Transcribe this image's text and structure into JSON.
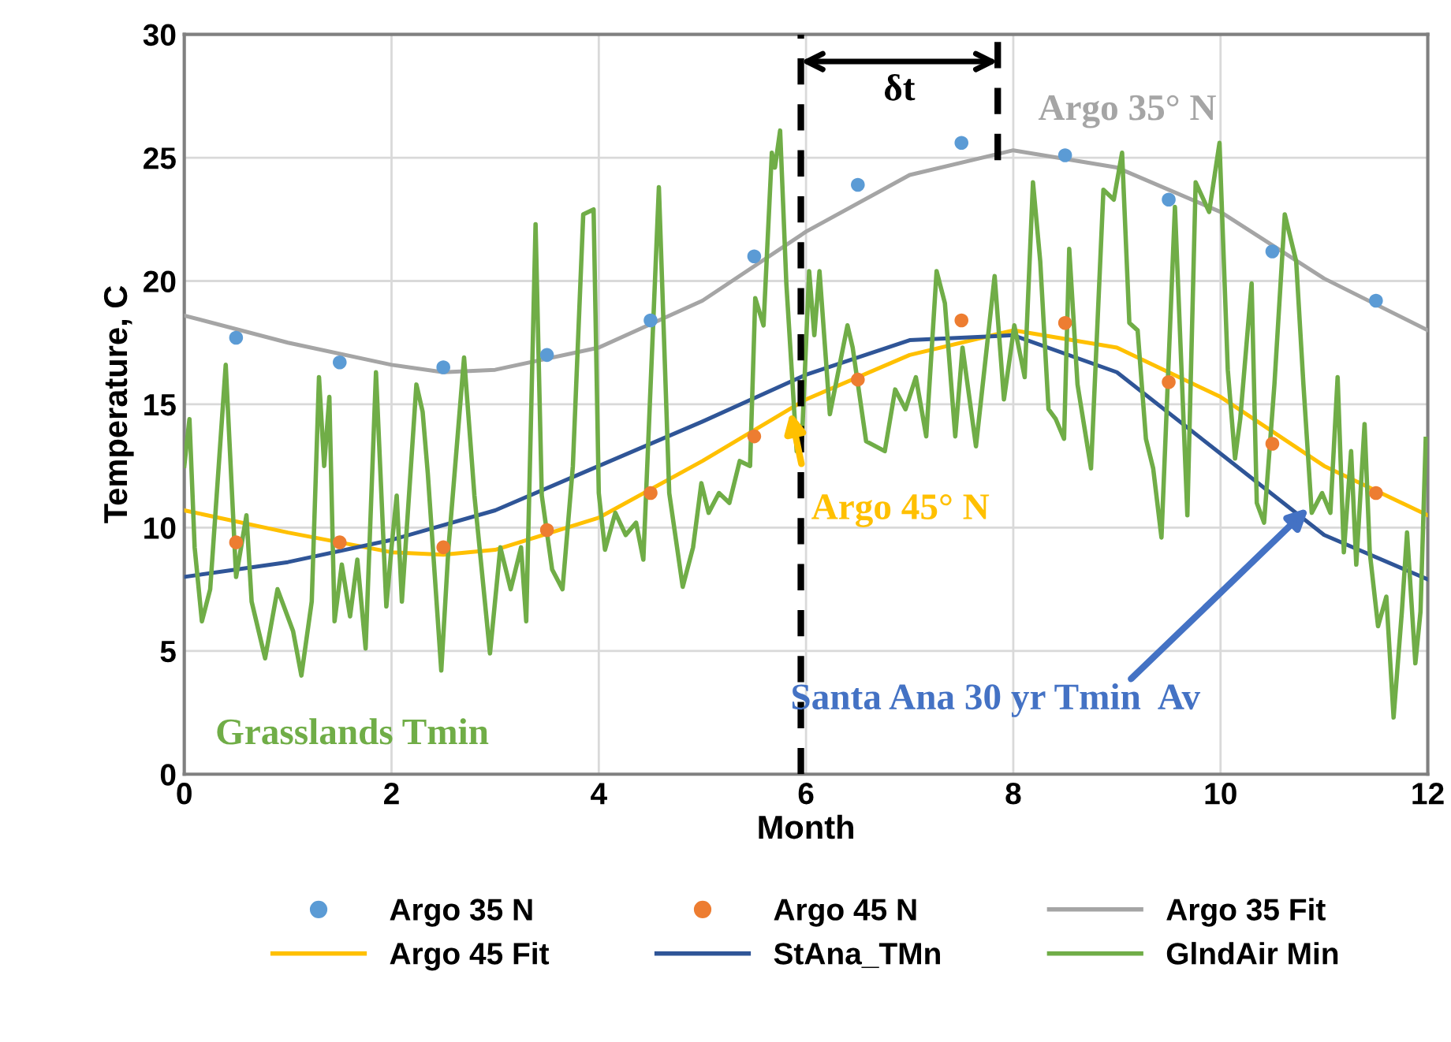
{
  "chart_data": {
    "type": "line",
    "xlabel": "Month",
    "ylabel": "Temperature, C",
    "xlim": [
      0,
      12
    ],
    "xticks": [
      0,
      2,
      4,
      6,
      8,
      10,
      12
    ],
    "ylim": [
      0,
      30
    ],
    "yticks": [
      0,
      5,
      10,
      15,
      20,
      25,
      30
    ],
    "grid": true,
    "legend": "bottom",
    "series": [
      {
        "name": "Argo 35 N",
        "type": "scatter",
        "marker": "circle",
        "color": "#5b9bd5",
        "x": [
          0.5,
          1.5,
          2.5,
          3.5,
          4.5,
          5.5,
          6.5,
          7.5,
          8.5,
          9.5,
          10.5,
          11.5
        ],
        "values": [
          17.7,
          16.7,
          16.5,
          17.0,
          18.4,
          21.0,
          23.9,
          25.6,
          25.1,
          23.3,
          21.2,
          19.2
        ]
      },
      {
        "name": "Argo 45 N",
        "type": "scatter",
        "marker": "circle",
        "color": "#ed7d31",
        "x": [
          0.5,
          1.5,
          2.5,
          3.5,
          4.5,
          5.5,
          6.5,
          7.5,
          8.5,
          9.5,
          10.5,
          11.5
        ],
        "values": [
          9.4,
          9.4,
          9.2,
          9.9,
          11.4,
          13.7,
          16.0,
          18.4,
          18.3,
          15.9,
          13.4,
          11.4
        ]
      },
      {
        "name": "Argo 35 Fit",
        "color": "#a5a5a5",
        "x": [
          0,
          1,
          2,
          2.5,
          3,
          4,
          5,
          6,
          7,
          8,
          9,
          10,
          11,
          12
        ],
        "values": [
          18.6,
          17.5,
          16.6,
          16.3,
          16.4,
          17.3,
          19.2,
          22.0,
          24.3,
          25.3,
          24.6,
          22.8,
          20.1,
          18.0
        ]
      },
      {
        "name": "Argo 45 Fit",
        "color": "#ffc000",
        "x": [
          0,
          1,
          2,
          2.5,
          3,
          4,
          5,
          6,
          7,
          8,
          9,
          10,
          11,
          12
        ],
        "values": [
          10.7,
          9.8,
          9.0,
          8.9,
          9.1,
          10.4,
          12.7,
          15.2,
          17.0,
          18.0,
          17.3,
          15.3,
          12.5,
          10.5
        ]
      },
      {
        "name": "StAna_TMn",
        "color": "#2f5597",
        "x": [
          0,
          1,
          2,
          3,
          4,
          5,
          6,
          7,
          8,
          9,
          10,
          11,
          12
        ],
        "values": [
          8.0,
          8.6,
          9.5,
          10.7,
          12.5,
          14.3,
          16.2,
          17.6,
          17.8,
          16.3,
          13.0,
          9.7,
          7.9
        ]
      },
      {
        "name": "GlndAir Min",
        "color": "#70ad47",
        "x": [
          0,
          0.05,
          0.1,
          0.17,
          0.25,
          0.4,
          0.5,
          0.6,
          0.65,
          0.78,
          0.9,
          1.05,
          1.13,
          1.23,
          1.3,
          1.35,
          1.4,
          1.45,
          1.52,
          1.6,
          1.67,
          1.75,
          1.85,
          1.95,
          2.0,
          2.05,
          2.1,
          2.24,
          2.3,
          2.35,
          2.48,
          2.55,
          2.7,
          2.8,
          2.95,
          3.05,
          3.15,
          3.25,
          3.3,
          3.39,
          3.45,
          3.55,
          3.65,
          3.75,
          3.85,
          3.95,
          4.0,
          4.06,
          4.16,
          4.26,
          4.36,
          4.43,
          4.58,
          4.68,
          4.81,
          4.91,
          4.99,
          5.06,
          5.16,
          5.26,
          5.36,
          5.46,
          5.51,
          5.59,
          5.67,
          5.7,
          5.75,
          5.81,
          5.91,
          5.96,
          6.03,
          6.08,
          6.13,
          6.23,
          6.4,
          6.45,
          6.58,
          6.76,
          6.86,
          6.96,
          7.06,
          7.16,
          7.26,
          7.34,
          7.44,
          7.51,
          7.64,
          7.82,
          7.91,
          8.01,
          8.11,
          8.19,
          8.26,
          8.34,
          8.41,
          8.49,
          8.54,
          8.62,
          8.75,
          8.87,
          8.97,
          9.05,
          9.12,
          9.2,
          9.28,
          9.35,
          9.43,
          9.56,
          9.68,
          9.76,
          9.89,
          9.99,
          10.07,
          10.14,
          10.19,
          10.3,
          10.35,
          10.42,
          10.52,
          10.62,
          10.73,
          10.8,
          10.88,
          10.98,
          11.06,
          11.13,
          11.19,
          11.26,
          11.31,
          11.39,
          11.44,
          11.52,
          11.6,
          11.67,
          11.75,
          11.8,
          11.88,
          11.93,
          11.98
        ],
        "values": [
          12.5,
          14.4,
          9.2,
          6.2,
          7.5,
          16.6,
          8.0,
          10.5,
          7.0,
          4.7,
          7.5,
          5.8,
          4.0,
          7.0,
          16.1,
          12.5,
          15.3,
          6.2,
          8.5,
          6.4,
          8.7,
          5.1,
          16.3,
          6.8,
          9.2,
          11.3,
          7.0,
          15.8,
          14.7,
          12.2,
          4.2,
          9.2,
          16.9,
          11.3,
          4.9,
          9.2,
          7.5,
          9.2,
          6.2,
          22.3,
          11.3,
          8.3,
          7.5,
          12.5,
          22.7,
          22.9,
          11.4,
          9.1,
          10.6,
          9.7,
          10.2,
          8.7,
          23.8,
          11.4,
          7.6,
          9.2,
          11.8,
          10.6,
          11.4,
          11.0,
          12.7,
          12.5,
          19.3,
          18.2,
          25.2,
          24.6,
          26.1,
          19.9,
          13.1,
          13.5,
          20.4,
          17.8,
          20.4,
          14.6,
          18.2,
          17.3,
          13.5,
          13.1,
          15.6,
          14.8,
          16.1,
          13.7,
          20.4,
          19.1,
          13.7,
          17.3,
          13.3,
          20.2,
          15.2,
          18.2,
          16.1,
          24.0,
          20.8,
          14.8,
          14.4,
          13.6,
          21.3,
          15.8,
          12.4,
          23.7,
          23.3,
          25.2,
          18.3,
          18.0,
          13.6,
          12.4,
          9.6,
          23.0,
          10.5,
          24.0,
          22.8,
          25.6,
          16.4,
          12.8,
          14.4,
          19.9,
          11.0,
          10.2,
          15.8,
          22.7,
          20.8,
          15.8,
          10.6,
          11.4,
          10.6,
          16.1,
          9.0,
          13.1,
          8.5,
          14.2,
          9.0,
          6.0,
          7.2,
          2.3,
          6.6,
          9.8,
          4.5,
          6.6,
          13.6
        ]
      }
    ],
    "ref_lines": [
      {
        "axis": "x",
        "value": 5.95,
        "color": "#000000",
        "line_style": "dashed"
      },
      {
        "axis": "x",
        "value": 7.85,
        "color": "#000000",
        "line_style": "dashed"
      }
    ],
    "annotations": [
      "δt",
      {
        "text": "Argo 35° N",
        "x": 8.2,
        "y": 25.3
      },
      {
        "text": "Argo 45° N",
        "x": 5.85,
        "y": 14.7
      },
      {
        "text": "Santa Ana 30 yr Tmin  Av",
        "x": 10.85,
        "y": 10.8
      },
      "Grasslands Tmin"
    ]
  }
}
